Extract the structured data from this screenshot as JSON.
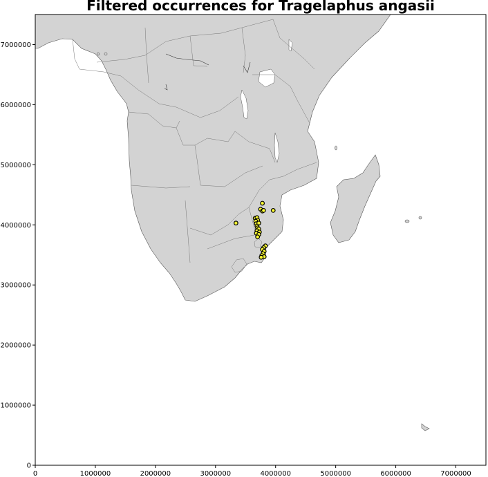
{
  "chart_data": {
    "type": "scatter",
    "title": "Filtered occurrences for Tragelaphus angasii",
    "xlim": [
      0,
      7500000
    ],
    "ylim": [
      0,
      7500000
    ],
    "x_ticks": [
      {
        "value": 0,
        "label": "0"
      },
      {
        "value": 1000000,
        "label": "1000000"
      },
      {
        "value": 2000000,
        "label": "2000000"
      },
      {
        "value": 3000000,
        "label": "3000000"
      },
      {
        "value": 4000000,
        "label": "4000000"
      },
      {
        "value": 5000000,
        "label": "5000000"
      },
      {
        "value": 6000000,
        "label": "6000000"
      },
      {
        "value": 7000000,
        "label": "7000000"
      }
    ],
    "y_ticks": [
      {
        "value": 0,
        "label": "0"
      },
      {
        "value": 1000000,
        "label": "1000000"
      },
      {
        "value": 2000000,
        "label": "2000000"
      },
      {
        "value": 3000000,
        "label": "3000000"
      },
      {
        "value": 4000000,
        "label": "4000000"
      },
      {
        "value": 5000000,
        "label": "5000000"
      },
      {
        "value": 6000000,
        "label": "6000000"
      },
      {
        "value": 7000000,
        "label": "7000000"
      }
    ],
    "grid": false,
    "colors": {
      "point_fill": "#ffff33",
      "point_edge": "#000000",
      "land": "#d3d3d3",
      "water": "#ffffff"
    },
    "points": [
      [
        3780000,
        4360000
      ],
      [
        3750000,
        4260000
      ],
      [
        3780000,
        4230000
      ],
      [
        3800000,
        4240000
      ],
      [
        3960000,
        4240000
      ],
      [
        3340000,
        4030000
      ],
      [
        3660000,
        4110000
      ],
      [
        3690000,
        4120000
      ],
      [
        3700000,
        4080000
      ],
      [
        3670000,
        4060000
      ],
      [
        3680000,
        4020000
      ],
      [
        3720000,
        4030000
      ],
      [
        3690000,
        3980000
      ],
      [
        3700000,
        3950000
      ],
      [
        3720000,
        3930000
      ],
      [
        3690000,
        3900000
      ],
      [
        3730000,
        3880000
      ],
      [
        3680000,
        3860000
      ],
      [
        3720000,
        3840000
      ],
      [
        3700000,
        3800000
      ],
      [
        3830000,
        3650000
      ],
      [
        3800000,
        3620000
      ],
      [
        3780000,
        3590000
      ],
      [
        3810000,
        3560000
      ],
      [
        3790000,
        3520000
      ],
      [
        3770000,
        3490000
      ],
      [
        3810000,
        3470000
      ],
      [
        3760000,
        3460000
      ]
    ]
  }
}
